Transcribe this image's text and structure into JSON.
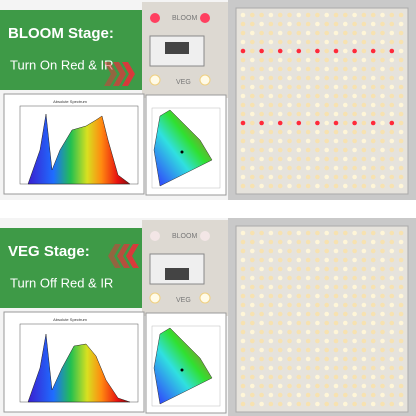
{
  "panels": [
    {
      "title": "BLOOM Stage:",
      "subtitle": "Turn On Red & IR",
      "switch_labels": [
        "BLOOM",
        "VEG"
      ],
      "spectrum_title": "Absolute Spectrum"
    },
    {
      "title": "VEG Stage:",
      "subtitle": "Turn Off Red & IR",
      "switch_labels": [
        "BLOOM",
        "VEG"
      ],
      "spectrum_title": "Absolute Spectrum"
    }
  ]
}
